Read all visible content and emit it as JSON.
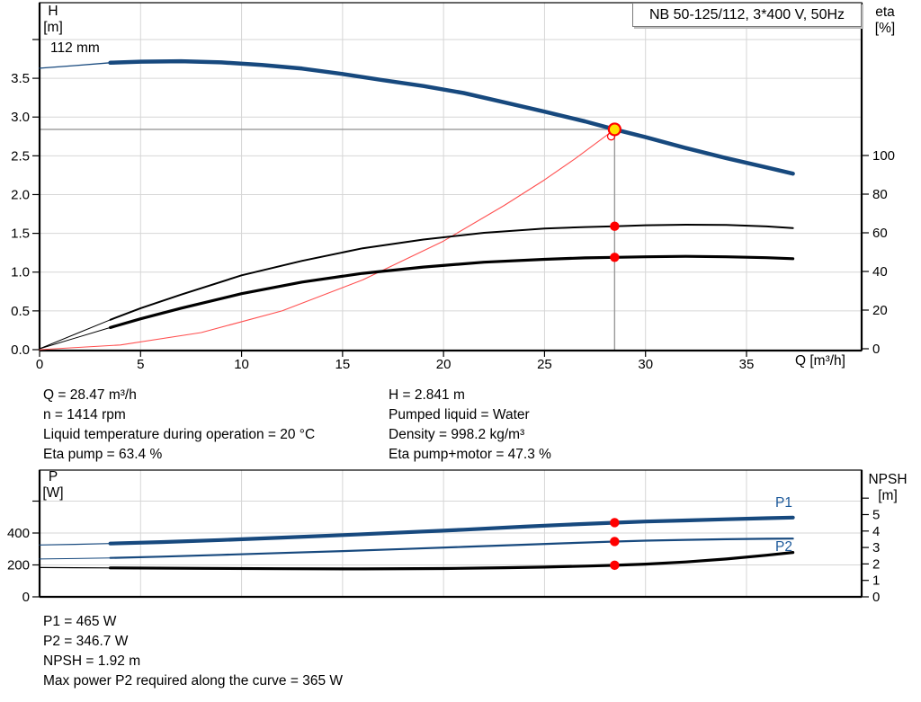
{
  "title_box": {
    "text": "NB 50-125/112, 3*400 V, 50Hz"
  },
  "labels": {
    "h": "H",
    "h_unit": "[m]",
    "eta": "eta",
    "eta_unit": "[%]",
    "q": "Q [m³/h]",
    "p": "P",
    "p_unit": "[W]",
    "npsh": "NPSH",
    "npsh_unit": "[m]"
  },
  "curve_labels": {
    "impeller": "112 mm",
    "p1": "P1",
    "p2": "P2"
  },
  "operating_point_text": {
    "left": [
      "Q = 28.47 m³/h",
      "n = 1414 rpm",
      "Liquid temperature during operation = 20 °C",
      "Eta pump = 63.4 %"
    ],
    "right": [
      "H = 2.841 m",
      "Pumped liquid = Water",
      "Density = 998.2 kg/m³",
      "Eta pump+motor = 47.3 %"
    ]
  },
  "bottom_text": [
    "P1 = 465 W",
    "P2 = 346.7 W",
    "NPSH = 1.92 m",
    "Max power P2 required along the curve = 365 W"
  ],
  "colors": {
    "curve_blue": "#17497E",
    "label_blue": "#1D5A9B",
    "red": "#FF0000",
    "system_red": "#FF5050",
    "marker_yellow": "#FFE000",
    "grid": "#D6D6D6",
    "duty_gray": "#999999",
    "frame": "#000000",
    "box_border": "#7A7A7A"
  },
  "chart_data": [
    {
      "name": "qh-eta-chart",
      "type": "line",
      "title": "NB 50-125/112, 3*400 V, 50Hz",
      "xlabel": "Q [m³/h]",
      "x_axis": {
        "range": [
          0,
          40.7
        ],
        "ticks": [
          0,
          5,
          10,
          15,
          20,
          25,
          30,
          35
        ],
        "tick_labels": [
          "0",
          "5",
          "10",
          "15",
          "20",
          "25",
          "30",
          "35"
        ],
        "show_tick_labels": true
      },
      "left_axis": {
        "id": "H",
        "label": "H [m]",
        "range": [
          0,
          4.44
        ],
        "tick_values": [
          0,
          0.5,
          1,
          1.5,
          2,
          2.5,
          3,
          3.5
        ],
        "tick_labels": [
          "0.0",
          "0.5",
          "1.0",
          "1.5",
          "2.0",
          "2.5",
          "3.0",
          "3.5"
        ],
        "extra_ticks": [
          4
        ]
      },
      "right_axis": {
        "id": "eta",
        "label": "eta [%]",
        "range": [
          0,
          100
        ],
        "tick_values": [
          0,
          20,
          40,
          60,
          80,
          100
        ],
        "tick_labels": [
          "0",
          "20",
          "40",
          "60",
          "80",
          "100"
        ],
        "extra_ticks": []
      },
      "duty_lines": {
        "q": 28.47,
        "value": 2.841,
        "axis": "H"
      },
      "series": [
        {
          "name": "system-curve",
          "axis": "H",
          "color": "#FF5050",
          "width": 1.1,
          "points": [
            [
              0,
              0
            ],
            [
              4,
              0.06
            ],
            [
              8,
              0.22
            ],
            [
              12,
              0.5
            ],
            [
              16,
              0.9
            ],
            [
              20,
              1.4
            ],
            [
              23,
              1.86
            ],
            [
              25,
              2.19
            ],
            [
              26.5,
              2.46
            ],
            [
              28.47,
              2.841
            ]
          ]
        },
        {
          "name": "eta-pump-low-flow",
          "axis": "eta",
          "color": "#000000",
          "width": 1,
          "points": [
            [
              0,
              0
            ],
            [
              1.75,
              7.5
            ],
            [
              3.5,
              15
            ]
          ]
        },
        {
          "name": "eta-pump",
          "axis": "eta",
          "color": "#000000",
          "width": 2,
          "points": [
            [
              3.5,
              15
            ],
            [
              5,
              21
            ],
            [
              7,
              28
            ],
            [
              10,
              38
            ],
            [
              13,
              45.5
            ],
            [
              16,
              52
            ],
            [
              19,
              56.5
            ],
            [
              22,
              60
            ],
            [
              25,
              62.2
            ],
            [
              27,
              63
            ],
            [
              28.47,
              63.4
            ],
            [
              30,
              63.9
            ],
            [
              32,
              64.2
            ],
            [
              34,
              64.1
            ],
            [
              36,
              63.3
            ],
            [
              37.3,
              62.4
            ]
          ]
        },
        {
          "name": "eta-pump-motor-low-flow",
          "axis": "eta",
          "color": "#000000",
          "width": 1,
          "points": [
            [
              0,
              0
            ],
            [
              1.75,
              5.5
            ],
            [
              3.5,
              11
            ]
          ]
        },
        {
          "name": "eta-pump-motor",
          "axis": "eta",
          "color": "#000000",
          "width": 3.2,
          "points": [
            [
              3.5,
              11
            ],
            [
              5,
              15.5
            ],
            [
              7,
              21
            ],
            [
              10,
              28.5
            ],
            [
              13,
              34.5
            ],
            [
              16,
              39
            ],
            [
              19,
              42.3
            ],
            [
              22,
              44.8
            ],
            [
              25,
              46.3
            ],
            [
              27,
              47
            ],
            [
              28.47,
              47.3
            ],
            [
              30,
              47.6
            ],
            [
              32,
              47.8
            ],
            [
              34,
              47.6
            ],
            [
              36,
              47.1
            ],
            [
              37.3,
              46.6
            ]
          ]
        },
        {
          "name": "h-curve-low-flow",
          "axis": "H",
          "color": "#17497E",
          "width": 1.3,
          "points": [
            [
              0,
              3.63
            ],
            [
              1.8,
              3.665
            ],
            [
              3.5,
              3.7
            ]
          ]
        },
        {
          "name": "h-curve-112mm",
          "axis": "H",
          "color": "#17497E",
          "width": 4.5,
          "points": [
            [
              3.5,
              3.7
            ],
            [
              5,
              3.714
            ],
            [
              7,
              3.72
            ],
            [
              9,
              3.705
            ],
            [
              11,
              3.672
            ],
            [
              13,
              3.625
            ],
            [
              15,
              3.555
            ],
            [
              17,
              3.475
            ],
            [
              19,
              3.4
            ],
            [
              21,
              3.31
            ],
            [
              23,
              3.19
            ],
            [
              25,
              3.07
            ],
            [
              27,
              2.945
            ],
            [
              28.47,
              2.841
            ],
            [
              30,
              2.74
            ],
            [
              32,
              2.6
            ],
            [
              34,
              2.47
            ],
            [
              36,
              2.35
            ],
            [
              37.3,
              2.27
            ]
          ]
        }
      ],
      "markers": [
        {
          "type": "open",
          "axis": "H",
          "q": 28.3,
          "value": 2.75
        },
        {
          "type": "duty",
          "axis": "H",
          "q": 28.47,
          "value": 2.841
        },
        {
          "type": "dot",
          "axis": "eta",
          "q": 28.47,
          "value": 63.4
        },
        {
          "type": "dot",
          "axis": "eta",
          "q": 28.47,
          "value": 47.3
        }
      ]
    },
    {
      "name": "power-npsh-chart",
      "type": "line",
      "xlabel": "",
      "x_axis": {
        "range": [
          0,
          40.7
        ],
        "ticks": [
          0,
          5,
          10,
          15,
          20,
          25,
          30,
          35
        ],
        "tick_labels": [
          "0",
          "5",
          "10",
          "15",
          "20",
          "25",
          "30",
          "35"
        ],
        "show_tick_labels": false
      },
      "left_axis": {
        "id": "P",
        "label": "P [W]",
        "range": [
          0,
          400
        ],
        "tick_values": [
          0,
          200,
          400
        ],
        "tick_labels": [
          "0",
          "200",
          "400"
        ],
        "extra_ticks": [
          600
        ]
      },
      "right_axis": {
        "id": "NPSH",
        "label": "NPSH [m]",
        "range": [
          0,
          5
        ],
        "tick_values": [
          0,
          1,
          2,
          3,
          4,
          5
        ],
        "tick_labels": [
          "0",
          "1",
          "2",
          "3",
          "4",
          "5"
        ],
        "extra_ticks": [
          6
        ]
      },
      "duty_lines": null,
      "series": [
        {
          "name": "p1-low-flow",
          "axis": "P",
          "color": "#17497E",
          "width": 1.2,
          "points": [
            [
              0,
              325
            ],
            [
              1.75,
              329
            ],
            [
              3.5,
              334
            ]
          ]
        },
        {
          "name": "p1-curve",
          "axis": "P",
          "color": "#17497E",
          "width": 4.2,
          "points": [
            [
              3.5,
              334
            ],
            [
              6,
              343
            ],
            [
              9,
              356
            ],
            [
              12,
              371
            ],
            [
              15,
              387
            ],
            [
              18,
              404
            ],
            [
              21,
              421
            ],
            [
              24,
              440
            ],
            [
              26,
              452
            ],
            [
              28.47,
              465
            ],
            [
              30,
              472
            ],
            [
              32,
              479
            ],
            [
              34,
              486
            ],
            [
              36,
              493
            ],
            [
              37.3,
              497
            ]
          ]
        },
        {
          "name": "p2-low-flow",
          "axis": "P",
          "color": "#17497E",
          "width": 1,
          "points": [
            [
              0,
              237
            ],
            [
              1.75,
              240
            ],
            [
              3.5,
              244
            ]
          ]
        },
        {
          "name": "p2-curve",
          "axis": "P",
          "color": "#17497E",
          "width": 2.2,
          "points": [
            [
              3.5,
              244
            ],
            [
              6,
              252
            ],
            [
              9,
              263
            ],
            [
              12,
              275
            ],
            [
              15,
              287
            ],
            [
              18,
              300
            ],
            [
              21,
              313
            ],
            [
              24,
              327
            ],
            [
              26,
              336
            ],
            [
              28.47,
              346.7
            ],
            [
              30,
              352
            ],
            [
              32,
              357
            ],
            [
              34,
              361
            ],
            [
              36,
              364
            ],
            [
              37.3,
              365
            ]
          ]
        },
        {
          "name": "npsh-low-flow",
          "axis": "NPSH",
          "color": "#000000",
          "width": 1.2,
          "points": [
            [
              0,
              1.78
            ],
            [
              1.75,
              1.77
            ],
            [
              3.5,
              1.76
            ]
          ]
        },
        {
          "name": "npsh-curve",
          "axis": "NPSH",
          "color": "#000000",
          "width": 3.2,
          "points": [
            [
              3.5,
              1.76
            ],
            [
              8,
              1.73
            ],
            [
              12,
              1.71
            ],
            [
              16,
              1.7
            ],
            [
              20,
              1.72
            ],
            [
              23,
              1.77
            ],
            [
              25,
              1.81
            ],
            [
              27,
              1.87
            ],
            [
              28.47,
              1.92
            ],
            [
              30,
              1.99
            ],
            [
              32,
              2.12
            ],
            [
              34,
              2.3
            ],
            [
              36,
              2.53
            ],
            [
              37.3,
              2.7
            ]
          ]
        }
      ],
      "markers": [
        {
          "type": "dot",
          "axis": "P",
          "q": 28.47,
          "value": 465
        },
        {
          "type": "dot",
          "axis": "P",
          "q": 28.47,
          "value": 346.7
        },
        {
          "type": "dot",
          "axis": "NPSH",
          "q": 28.47,
          "value": 1.92
        }
      ]
    }
  ]
}
